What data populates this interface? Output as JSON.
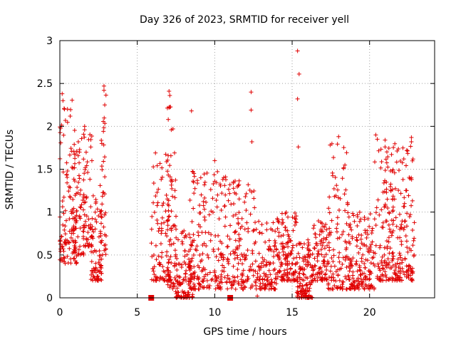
{
  "chart_data": {
    "type": "scatter",
    "title": "Day 326 of 2023, SRMTID for receiver yell",
    "xlabel": "GPS time / hours",
    "ylabel": "SRMTID / TECUs",
    "xlim": [
      0,
      24.2
    ],
    "ylim": [
      0,
      3
    ],
    "x_ticks": [
      0,
      5,
      10,
      15,
      20
    ],
    "x_tick_labels": [
      "0",
      "5",
      "10",
      "15",
      "20"
    ],
    "y_ticks": [
      0,
      0.5,
      1,
      1.5,
      2,
      2.5,
      3
    ],
    "y_tick_labels": [
      "0",
      "0.5",
      "1",
      "1.5",
      "2",
      "2.5",
      "3"
    ],
    "grid": true,
    "marker": "plus",
    "color": "#e00000",
    "gap_markers_x": [
      5.9,
      11.0
    ],
    "clusters": [
      {
        "x_start": 0.0,
        "x_end": 1.1,
        "y_min": 0.4,
        "y_max": 2.4,
        "density": 120
      },
      {
        "x_start": 0.9,
        "x_end": 1.6,
        "y_min": 0.5,
        "y_max": 1.9,
        "density": 60
      },
      {
        "x_start": 1.5,
        "x_end": 2.1,
        "y_min": 0.6,
        "y_max": 2.0,
        "density": 60
      },
      {
        "x_start": 2.0,
        "x_end": 2.7,
        "y_min": 0.2,
        "y_max": 1.2,
        "density": 70
      },
      {
        "x_start": 2.6,
        "x_end": 3.0,
        "y_min": 0.5,
        "y_max": 2.4,
        "density": 40
      },
      {
        "x_start": 5.9,
        "x_end": 7.2,
        "y_min": 0.2,
        "y_max": 1.7,
        "density": 110
      },
      {
        "x_start": 6.9,
        "x_end": 7.5,
        "y_min": 0.1,
        "y_max": 2.4,
        "density": 50
      },
      {
        "x_start": 7.4,
        "x_end": 8.6,
        "y_min": 0.0,
        "y_max": 0.8,
        "density": 120
      },
      {
        "x_start": 8.4,
        "x_end": 11.0,
        "y_min": 0.1,
        "y_max": 1.5,
        "density": 200
      },
      {
        "x_start": 11.0,
        "x_end": 12.6,
        "y_min": 0.1,
        "y_max": 1.4,
        "density": 120
      },
      {
        "x_start": 12.6,
        "x_end": 14.0,
        "y_min": 0.1,
        "y_max": 0.9,
        "density": 110
      },
      {
        "x_start": 14.0,
        "x_end": 15.3,
        "y_min": 0.2,
        "y_max": 1.0,
        "density": 130
      },
      {
        "x_start": 15.3,
        "x_end": 16.3,
        "y_min": 0.0,
        "y_max": 0.7,
        "density": 120
      },
      {
        "x_start": 16.3,
        "x_end": 17.3,
        "y_min": 0.2,
        "y_max": 0.9,
        "density": 90
      },
      {
        "x_start": 17.3,
        "x_end": 18.6,
        "y_min": 0.1,
        "y_max": 1.8,
        "density": 110
      },
      {
        "x_start": 18.6,
        "x_end": 20.3,
        "y_min": 0.1,
        "y_max": 1.0,
        "density": 160
      },
      {
        "x_start": 20.3,
        "x_end": 21.6,
        "y_min": 0.2,
        "y_max": 1.8,
        "density": 130
      },
      {
        "x_start": 21.6,
        "x_end": 22.9,
        "y_min": 0.2,
        "y_max": 1.8,
        "density": 130
      }
    ],
    "notable_points": [
      [
        0.15,
        2.38
      ],
      [
        0.2,
        2.3
      ],
      [
        0.3,
        2.2
      ],
      [
        1.6,
        2.0
      ],
      [
        1.6,
        1.96
      ],
      [
        2.85,
        2.47
      ],
      [
        2.85,
        2.42
      ],
      [
        2.9,
        2.25
      ],
      [
        7.05,
        2.41
      ],
      [
        7.1,
        2.36
      ],
      [
        7.05,
        2.22
      ],
      [
        7.0,
        2.08
      ],
      [
        8.5,
        2.18
      ],
      [
        10.0,
        1.6
      ],
      [
        12.35,
        2.4
      ],
      [
        12.35,
        2.19
      ],
      [
        12.4,
        1.82
      ],
      [
        15.35,
        2.88
      ],
      [
        15.45,
        2.61
      ],
      [
        15.35,
        2.32
      ],
      [
        15.4,
        1.76
      ],
      [
        18.0,
        1.88
      ],
      [
        20.4,
        1.9
      ],
      [
        20.5,
        1.85
      ],
      [
        21.0,
        1.84
      ],
      [
        21.0,
        1.76
      ],
      [
        22.7,
        1.87
      ],
      [
        22.7,
        1.82
      ],
      [
        22.4,
        1.72
      ],
      [
        12.75,
        0.02
      ],
      [
        15.7,
        0.05
      ]
    ]
  }
}
